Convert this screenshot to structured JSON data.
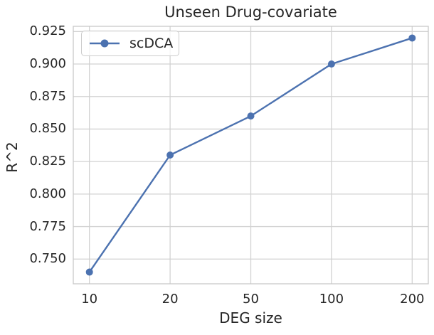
{
  "figure": {
    "background": "#ffffff",
    "text_color": "#262626",
    "grid_color": "#d2d2d2",
    "spine_color": "#c9c9c9"
  },
  "chart_data": {
    "type": "line",
    "title": "Unseen Drug-covariate",
    "xlabel": "DEG size",
    "ylabel": "R^2",
    "categories": [
      "10",
      "20",
      "50",
      "100",
      "200"
    ],
    "series": [
      {
        "name": "scDCA",
        "color": "#4C72B0",
        "marker": "circle",
        "values": [
          0.74,
          0.83,
          0.86,
          0.9,
          0.92
        ]
      }
    ],
    "yticks": [
      "0.750",
      "0.775",
      "0.800",
      "0.825",
      "0.850",
      "0.875",
      "0.900",
      "0.925"
    ],
    "ylim": [
      0.731,
      0.929
    ],
    "x_margin": 0.2,
    "grid": true,
    "legend_position": "upper left"
  }
}
